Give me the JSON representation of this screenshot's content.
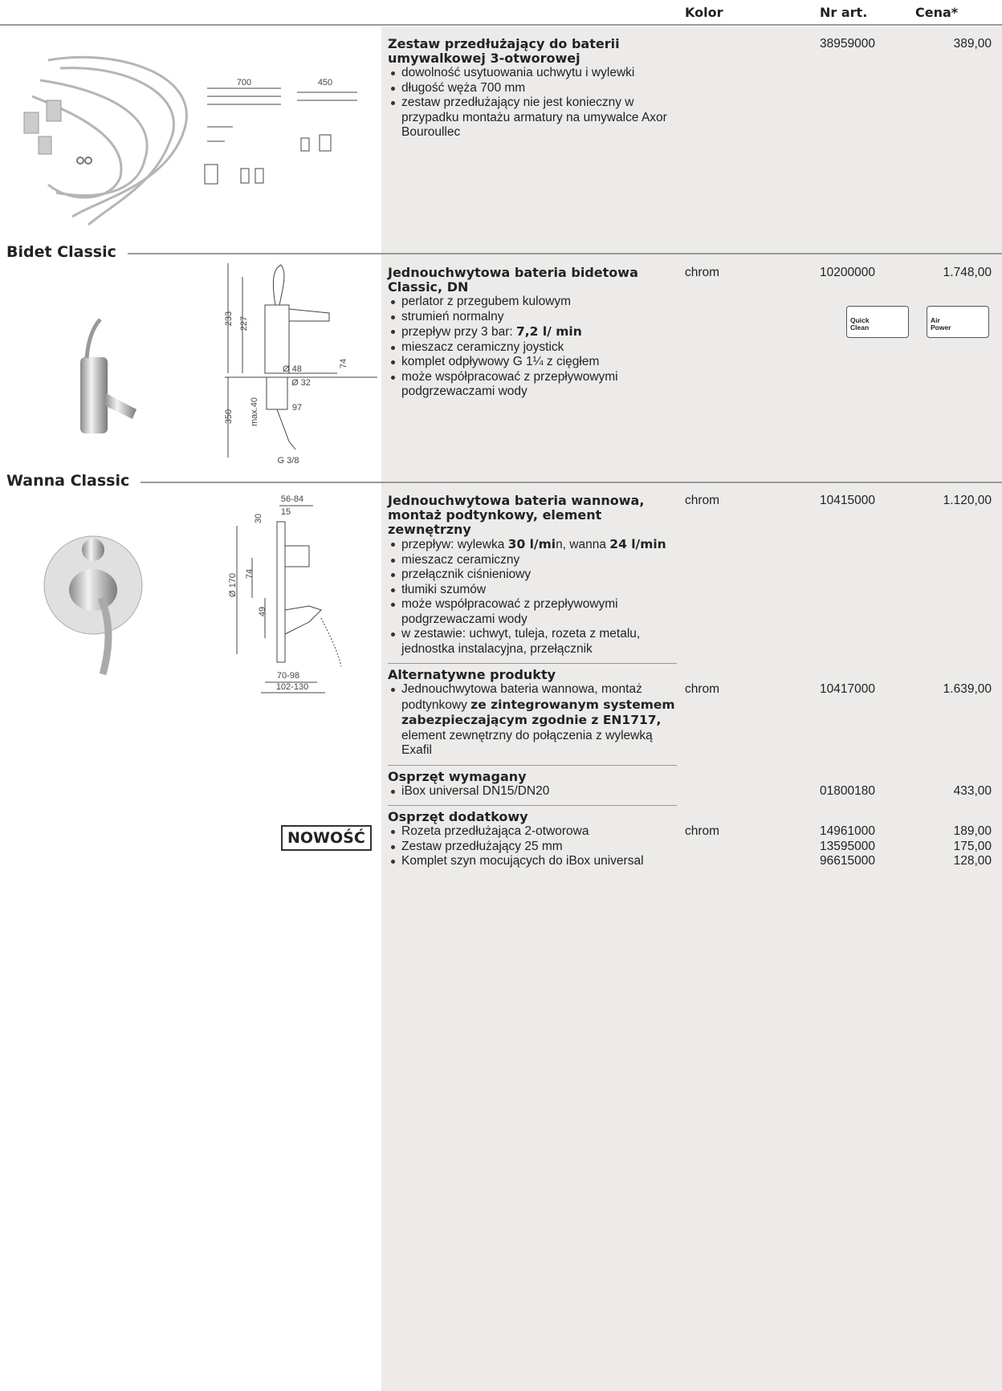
{
  "header": {
    "columns": [
      "Kolor",
      "Nr art.",
      "Cena*"
    ]
  },
  "groups": [
    {
      "drawing": [
        "700",
        "450"
      ],
      "items": [
        {
          "heading": "Zestaw przedłużający do baterii umywalkowej 3-otworowej",
          "number": "38959000",
          "price": "389,00",
          "bullets": [
            {
              "text": [
                "dowolność usytuowania uchwytu i wylewki"
              ]
            },
            {
              "text": [
                "długość węża 700 mm"
              ]
            },
            {
              "text": [
                "zestaw przedłużający nie jest konieczny w przypadku montażu armatury na umywalce Axor Bouroullec"
              ]
            }
          ]
        }
      ]
    },
    {
      "title": "Bidet Classic",
      "drawing": [
        "233",
        "227",
        "Ø 48",
        "Ø 32",
        "74",
        "350",
        "max.40",
        "97",
        "G 3/8"
      ],
      "items": [
        {
          "heading": "Jednouchwytowa bateria bidetowa Classic, DN",
          "color": "chrom",
          "number": "10200000",
          "price": "1.748,00",
          "icons": [
            "Quick Clean",
            "Air Power"
          ],
          "bullets": [
            {
              "text": [
                "perlator z przegubem kulowym"
              ]
            },
            {
              "text": [
                "strumień normalny"
              ]
            },
            {
              "text": [
                "przepływ przy 3 bar: ",
                {
                  "bold": "7,2 l/ min"
                }
              ]
            },
            {
              "text": [
                "mieszacz ceramiczny joystick"
              ]
            },
            {
              "text": [
                "komplet odpływowy G 1¼ z cięgłem"
              ]
            },
            {
              "text": [
                "może współpracować z przepływowymi podgrzewaczami wody"
              ]
            }
          ]
        }
      ]
    },
    {
      "title": "Wanna Classic",
      "drawing": [
        "56-84",
        "15",
        "30",
        "Ø 170",
        "74",
        "49",
        "70-98",
        "102-130"
      ],
      "items": [
        {
          "heading": "Jednouchwytowa bateria wannowa, montaż podtynkowy, element zewnętrzny",
          "color": "chrom",
          "number": "10415000",
          "price": "1.120,00",
          "bullets": [
            {
              "text": [
                "przepływ: wylewka ",
                {
                  "bold": "30 l/mi"
                },
                "n, wanna ",
                {
                  "bold": "24 l/min"
                }
              ]
            },
            {
              "text": [
                "mieszacz ceramiczny"
              ]
            },
            {
              "text": [
                "przełącznik ciśnieniowy"
              ]
            },
            {
              "text": [
                "tłumiki szumów"
              ]
            },
            {
              "text": [
                "może współpracować z przepływowymi podgrzewaczami wody"
              ]
            },
            {
              "text": [
                "w zestawie: uchwyt, tuleja, rozeta z metalu, jednostka instalacyjna, przełącznik"
              ]
            }
          ]
        },
        {
          "heading": "Alternatywne produkty",
          "bullets": [
            {
              "text": [
                "Jednouchwytowa bateria wannowa, montaż podtynkowy ",
                {
                  "bold": "ze zintegrowanym systemem zabezpieczającym zgodnie z EN1717,"
                },
                " element zewnętrzny do połączenia z wylewką Exafil"
              ],
              "color": "chrom",
              "number": "10417000",
              "price": "1.639,00"
            }
          ]
        },
        {
          "heading": "Osprzęt wymagany",
          "bullets": [
            {
              "text": [
                "iBox universal DN15/DN20"
              ],
              "number": "01800180",
              "price": "433,00"
            }
          ]
        },
        {
          "heading": "Osprzęt dodatkowy",
          "badge": "NOWOŚĆ",
          "bullets": [
            {
              "text": [
                "Rozeta przedłużająca 2-otworowa"
              ],
              "color": "chrom",
              "number": "14961000",
              "price": "189,00"
            },
            {
              "text": [
                "Zestaw przedłużający 25 mm"
              ],
              "number": "13595000",
              "price": "175,00"
            },
            {
              "text": [
                "Komplet szyn mocujących do iBox universal"
              ],
              "number": "96615000",
              "price": "128,00"
            }
          ]
        }
      ]
    }
  ]
}
